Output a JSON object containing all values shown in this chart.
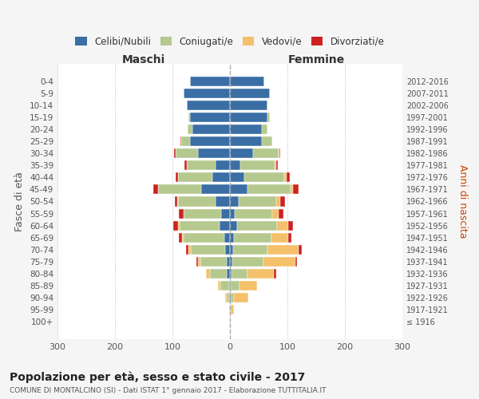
{
  "age_groups": [
    "100+",
    "95-99",
    "90-94",
    "85-89",
    "80-84",
    "75-79",
    "70-74",
    "65-69",
    "60-64",
    "55-59",
    "50-54",
    "45-49",
    "40-44",
    "35-39",
    "30-34",
    "25-29",
    "20-24",
    "15-19",
    "10-14",
    "5-9",
    "0-4"
  ],
  "birth_years": [
    "≤ 1916",
    "1917-1921",
    "1922-1926",
    "1927-1931",
    "1932-1936",
    "1937-1941",
    "1942-1946",
    "1947-1951",
    "1952-1956",
    "1957-1961",
    "1962-1966",
    "1967-1971",
    "1972-1976",
    "1977-1981",
    "1982-1986",
    "1987-1991",
    "1992-1996",
    "1997-2001",
    "2002-2006",
    "2007-2011",
    "2012-2016"
  ],
  "maschi": {
    "celibi": [
      0,
      0,
      1,
      2,
      5,
      6,
      8,
      10,
      18,
      15,
      25,
      50,
      30,
      25,
      55,
      70,
      65,
      70,
      75,
      80,
      70
    ],
    "coniugati": [
      0,
      1,
      5,
      15,
      30,
      45,
      60,
      70,
      70,
      65,
      65,
      75,
      60,
      50,
      40,
      15,
      8,
      2,
      0,
      0,
      0
    ],
    "vedovi": [
      0,
      1,
      2,
      4,
      6,
      5,
      4,
      3,
      2,
      1,
      1,
      0,
      0,
      0,
      0,
      0,
      0,
      0,
      0,
      0,
      0
    ],
    "divorziati": [
      0,
      0,
      0,
      0,
      0,
      2,
      5,
      6,
      8,
      8,
      5,
      8,
      5,
      4,
      2,
      1,
      0,
      0,
      0,
      0,
      0
    ]
  },
  "femmine": {
    "nubili": [
      0,
      0,
      1,
      2,
      3,
      4,
      5,
      7,
      12,
      8,
      15,
      30,
      25,
      18,
      40,
      55,
      55,
      65,
      65,
      70,
      60
    ],
    "coniugate": [
      0,
      2,
      6,
      15,
      28,
      55,
      60,
      65,
      70,
      65,
      65,
      75,
      70,
      60,
      45,
      18,
      10,
      4,
      0,
      0,
      0
    ],
    "vedove": [
      1,
      5,
      25,
      30,
      45,
      55,
      55,
      30,
      20,
      12,
      8,
      5,
      3,
      2,
      1,
      0,
      0,
      0,
      0,
      0,
      0
    ],
    "divorziate": [
      0,
      0,
      0,
      0,
      5,
      2,
      5,
      5,
      8,
      8,
      8,
      10,
      6,
      4,
      2,
      0,
      0,
      0,
      0,
      0,
      0
    ]
  },
  "colors": {
    "celibi_nubili": "#3a6ea5",
    "coniugati": "#b5c98e",
    "vedovi": "#f5c06a",
    "divorziati": "#cc2222"
  },
  "legend_labels": [
    "Celibi/Nubili",
    "Coniugati/e",
    "Vedovi/e",
    "Divorziati/e"
  ],
  "title": "Popolazione per età, sesso e stato civile - 2017",
  "subtitle": "COMUNE DI MONTALCINO (SI) - Dati ISTAT 1° gennaio 2017 - Elaborazione TUTTITALIA.IT",
  "ylabel_left": "Fasce di età",
  "ylabel_right": "Anni di nascita",
  "xlabel_left": "Maschi",
  "xlabel_right": "Femmine",
  "xlim": 300,
  "background_color": "#f5f5f5",
  "plot_bg": "#ffffff"
}
